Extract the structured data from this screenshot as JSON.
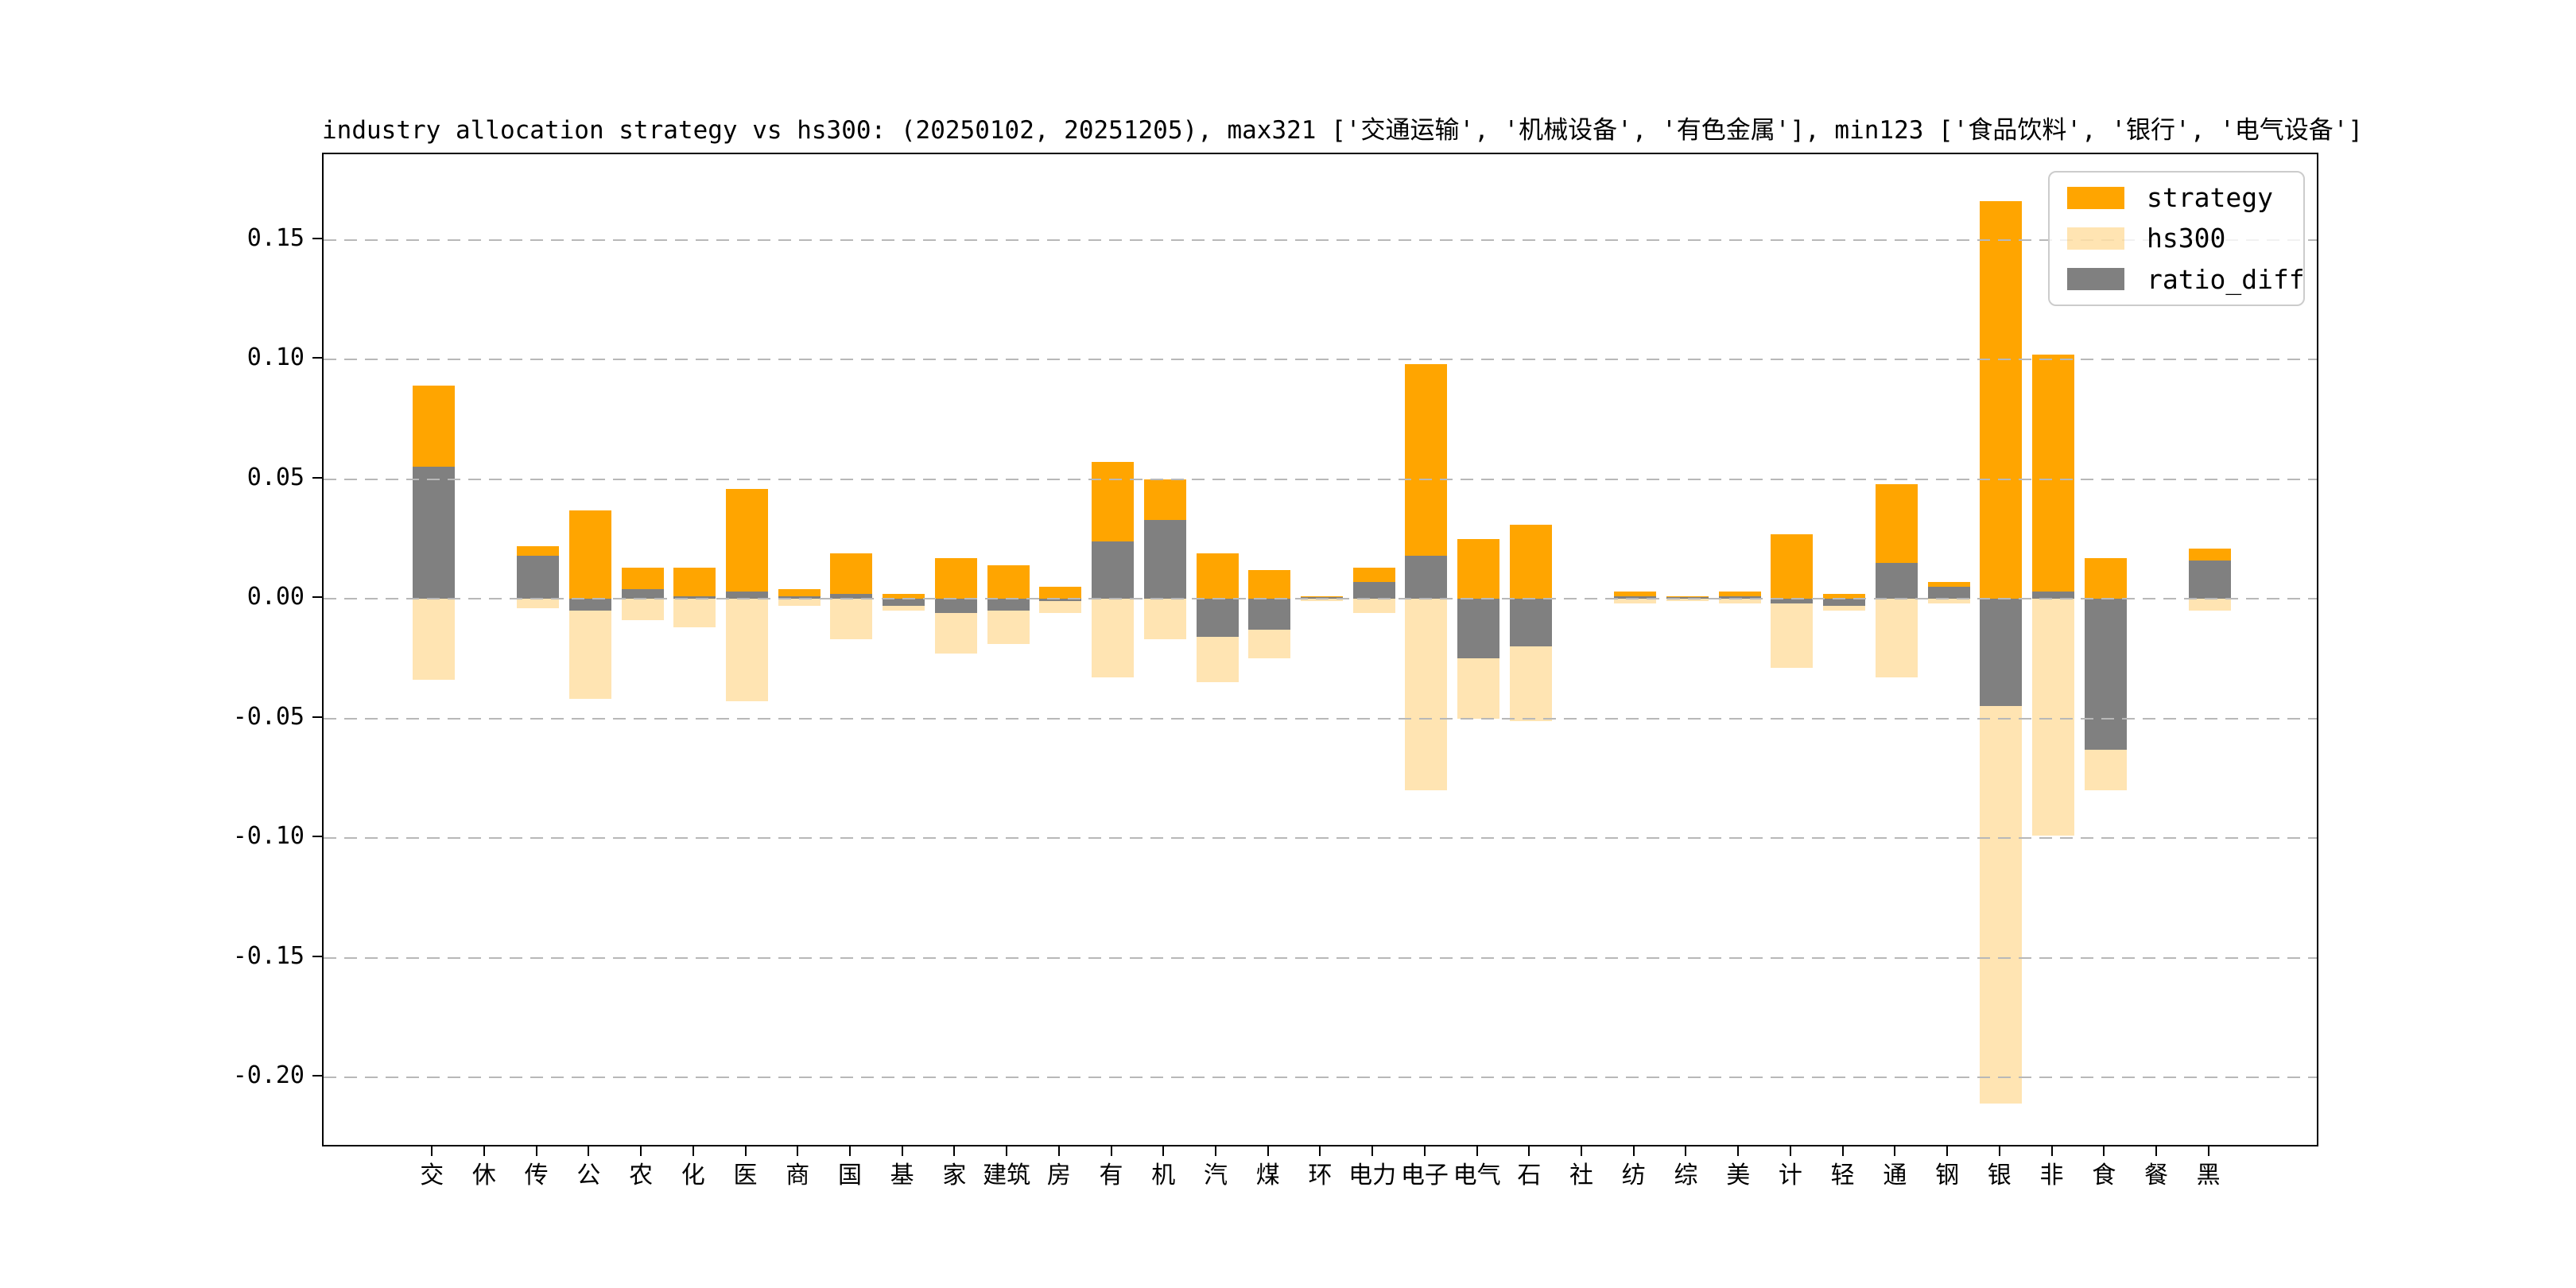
{
  "title": "industry allocation strategy vs hs300: (20250102, 20251205), max321 ['交通运输', '机械设备', '有色金属'], min123 ['食品饮料', '银行', '电气设备']",
  "legend": {
    "items": [
      {
        "label": "strategy",
        "color": "#FFA500"
      },
      {
        "label": "hs300",
        "color": "rgba(255,165,0,0.30)"
      },
      {
        "label": "ratio_diff",
        "color": "#808080"
      }
    ],
    "position": "upper right"
  },
  "colors": {
    "strategy": "#FFA500",
    "hs300": "rgba(255,165,0,0.30)",
    "ratio_diff": "#808080",
    "grid": "#b8b8b8",
    "axis": "#000000"
  },
  "chart_data": {
    "type": "bar",
    "title": "industry allocation strategy vs hs300: (20250102, 20251205), max321 ['交通运输', '机械设备', '有色金属'], min123 ['食品饮料', '银行', '电气设备']",
    "xlabel": "",
    "ylabel": "",
    "categories": [
      "交",
      "休",
      "传",
      "公",
      "农",
      "化",
      "医",
      "商",
      "国",
      "基",
      "家",
      "建筑",
      "房",
      "有",
      "机",
      "汽",
      "煤",
      "环",
      "电力",
      "电子",
      "电气",
      "石",
      "社",
      "纺",
      "综",
      "美",
      "计",
      "轻",
      "通",
      "钢",
      "银",
      "非",
      "食",
      "餐",
      "黑"
    ],
    "series": [
      {
        "name": "strategy",
        "values": [
          0.089,
          0,
          0.022,
          0.037,
          0.013,
          0.013,
          0.046,
          0.004,
          0.019,
          0.002,
          0.017,
          0.014,
          0.005,
          0.057,
          0.05,
          0.019,
          0.012,
          0.001,
          0.013,
          0.098,
          0.025,
          0.031,
          0,
          0.003,
          0.001,
          0.003,
          0.027,
          0.002,
          0.048,
          0.007,
          0.166,
          0.102,
          0.017,
          0,
          0.021
        ]
      },
      {
        "name": "hs300",
        "values": [
          -0.034,
          0,
          -0.004,
          -0.042,
          -0.009,
          -0.012,
          -0.043,
          -0.003,
          -0.017,
          -0.005,
          -0.023,
          -0.019,
          -0.006,
          -0.033,
          -0.017,
          -0.035,
          -0.025,
          -0.001,
          -0.006,
          -0.08,
          -0.05,
          -0.051,
          0,
          -0.002,
          -0.001,
          -0.002,
          -0.029,
          -0.005,
          -0.033,
          -0.002,
          -0.211,
          -0.099,
          -0.08,
          0,
          -0.005
        ]
      },
      {
        "name": "ratio_diff",
        "values": [
          0.055,
          0,
          0.018,
          -0.005,
          0.004,
          0.001,
          0.003,
          0.001,
          0.002,
          -0.003,
          -0.006,
          -0.005,
          -0.001,
          0.024,
          0.033,
          -0.016,
          -0.013,
          0.0005,
          0.007,
          0.018,
          -0.025,
          -0.02,
          0,
          0.001,
          0.0005,
          0.001,
          -0.002,
          -0.003,
          0.015,
          0.005,
          -0.045,
          0.003,
          -0.063,
          0,
          0.016
        ]
      }
    ],
    "ytick_labels": [
      "0.15",
      "0.10",
      "0.05",
      "0.00",
      "-0.05",
      "-0.10",
      "-0.15",
      "-0.20"
    ],
    "ytick_values": [
      0.15,
      0.1,
      0.05,
      0.0,
      -0.05,
      -0.1,
      -0.15,
      -0.2
    ],
    "ylim": [
      -0.23,
      0.186
    ],
    "grid": "horizontal dashed, drawn above bars",
    "legend_position": "upper right",
    "note": "hs300 weights are plotted as negative (downward) bars; ratio_diff = strategy - hs300"
  }
}
